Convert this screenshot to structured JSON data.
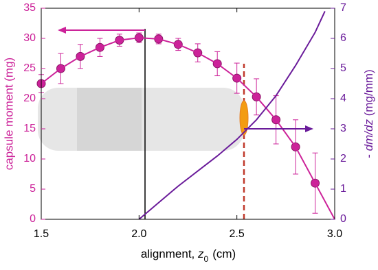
{
  "chart_data": {
    "type": "line",
    "xlabel": {
      "text": "alignment, ",
      "var": "z",
      "sub": "0",
      "unit": "(cm)"
    },
    "ylabel": "capsule moment  (mg)",
    "y2label": {
      "sign": "- ",
      "var": "dm/dz",
      "unit": " (mg/mm)"
    },
    "xlim": [
      1.5,
      3.0
    ],
    "xticks": [
      1.5,
      {
        "value": 2,
        "label": "2.0"
      },
      2.5,
      {
        "value": 3,
        "label": "3.0"
      }
    ],
    "ylim": [
      0,
      35
    ],
    "yticks": [
      0,
      5,
      10,
      15,
      20,
      25,
      30,
      35
    ],
    "y2lim": [
      0,
      7
    ],
    "y2ticks": [
      0,
      1,
      2,
      3,
      4,
      5,
      6,
      7
    ],
    "series": [
      {
        "style": "markers",
        "color": "#cc2299",
        "axis": "y",
        "x": [
          1.5,
          1.6,
          1.7,
          1.8,
          1.9,
          2.0,
          2.1,
          2.2,
          2.3,
          2.4,
          2.5,
          2.6,
          2.7,
          2.8,
          2.9
        ],
        "values": [
          22.5,
          25,
          27,
          28.5,
          29.7,
          30.1,
          29.9,
          29,
          27.6,
          25.8,
          23.4,
          20.3,
          16.5,
          12,
          6
        ],
        "errors": [
          1.5,
          2.5,
          2,
          1.5,
          1,
          0.8,
          0.8,
          1,
          1.5,
          2,
          2.5,
          3,
          4,
          4.5,
          5
        ]
      },
      {
        "style": "line",
        "color": "#cc2299",
        "axis": "y",
        "x": [
          1.5,
          1.6,
          1.7,
          1.8,
          1.9,
          2.0,
          2.1,
          2.2,
          2.3,
          2.4,
          2.5,
          2.6,
          2.7,
          2.8,
          2.9,
          3.0
        ],
        "values": [
          22.5,
          25,
          27,
          28.5,
          29.7,
          30.1,
          29.9,
          29,
          27.6,
          25.8,
          23.4,
          20.3,
          16.5,
          12,
          6,
          0
        ]
      },
      {
        "style": "line",
        "color": "#6a1b9a",
        "axis": "y2",
        "x": [
          2.0,
          2.1,
          2.2,
          2.3,
          2.4,
          2.5,
          2.6,
          2.7,
          2.8,
          2.9,
          2.95
        ],
        "values": [
          0,
          0.55,
          1.1,
          1.6,
          2.1,
          2.65,
          3.3,
          4.1,
          5.1,
          6.2,
          6.9
        ]
      }
    ],
    "ycolor": "#cc2299",
    "y2color": "#6a1b9a"
  }
}
